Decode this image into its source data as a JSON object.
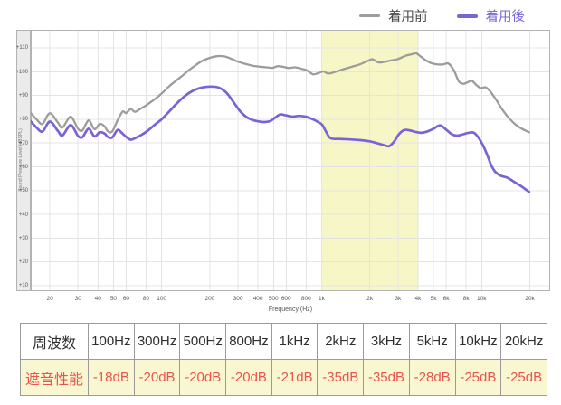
{
  "legend": {
    "before": {
      "label": "着用前",
      "color": "#9c9c9c",
      "text_color": "#4a4a4a"
    },
    "after": {
      "label": "着用後",
      "color": "#7b63d6",
      "text_color": "#7b63d6"
    }
  },
  "chart_data": {
    "type": "line",
    "x_axis": {
      "title": "Frequency (Hz)",
      "scale": "log",
      "min": 15.2,
      "max": 26800,
      "ticks": [
        20,
        30,
        40,
        50,
        60,
        80,
        100,
        200,
        300,
        400,
        500,
        600,
        800,
        1000,
        2000,
        3000,
        4000,
        5000,
        6000,
        8000,
        10000,
        20000
      ],
      "tick_labels": [
        "20",
        "30",
        "40",
        "50",
        "60",
        "80",
        "100",
        "200",
        "300",
        "400",
        "500",
        "600",
        "800",
        "1k",
        "2k",
        "3k",
        "4k",
        "5k",
        "6k",
        "8k",
        "10k",
        "20k"
      ]
    },
    "y_axis": {
      "title": "Sound Pressure Level (dBSPL)",
      "min": 7.7,
      "max": 117.6,
      "ticks": [
        10,
        20,
        30,
        40,
        50,
        60,
        70,
        80,
        90,
        100,
        110
      ],
      "tick_labels": [
        "+10",
        "+20",
        "+30",
        "+40",
        "+50",
        "+60",
        "+70",
        "+80",
        "+90",
        "+100",
        "+110"
      ]
    },
    "highlight_band": {
      "from": 1000,
      "to": 4000,
      "color": "#f7f6c6"
    },
    "grid_color": "#e4e4e4",
    "border_color": "#b3b3b3",
    "series": [
      {
        "name": "着用前",
        "color": "#9c9c9c",
        "width": 2.3,
        "points": [
          [
            15,
            83
          ],
          [
            16.5,
            80
          ],
          [
            18,
            78
          ],
          [
            20,
            82.5
          ],
          [
            22.5,
            78.5
          ],
          [
            24,
            76.5
          ],
          [
            27,
            81
          ],
          [
            30,
            76
          ],
          [
            32,
            75.3
          ],
          [
            35,
            79.5
          ],
          [
            38,
            75.8
          ],
          [
            41,
            78
          ],
          [
            44,
            77
          ],
          [
            46,
            75
          ],
          [
            49,
            74.8
          ],
          [
            53,
            79.5
          ],
          [
            57,
            83.2
          ],
          [
            60,
            82.6
          ],
          [
            64,
            84.3
          ],
          [
            68,
            83.1
          ],
          [
            73,
            84.2
          ],
          [
            80,
            85.8
          ],
          [
            88,
            87.8
          ],
          [
            95,
            89.5
          ],
          [
            103,
            91.6
          ],
          [
            112,
            94
          ],
          [
            122,
            96
          ],
          [
            133,
            98
          ],
          [
            146,
            100.3
          ],
          [
            160,
            102.3
          ],
          [
            178,
            104.4
          ],
          [
            200,
            105.8
          ],
          [
            222,
            106.5
          ],
          [
            248,
            106.4
          ],
          [
            272,
            105.4
          ],
          [
            300,
            104.2
          ],
          [
            332,
            103.3
          ],
          [
            370,
            102.5
          ],
          [
            412,
            102.1
          ],
          [
            455,
            101.8
          ],
          [
            492,
            101.6
          ],
          [
            532,
            102.3
          ],
          [
            578,
            102
          ],
          [
            625,
            101.5
          ],
          [
            682,
            101.8
          ],
          [
            748,
            101.2
          ],
          [
            812,
            100.5
          ],
          [
            882,
            98.9
          ],
          [
            955,
            99.4
          ],
          [
            1025,
            100.1
          ],
          [
            1100,
            99.2
          ],
          [
            1200,
            99.8
          ],
          [
            1350,
            100.9
          ],
          [
            1550,
            102.1
          ],
          [
            1750,
            103.2
          ],
          [
            1950,
            104.6
          ],
          [
            2080,
            105.2
          ],
          [
            2260,
            103.9
          ],
          [
            2460,
            104.1
          ],
          [
            2700,
            104.7
          ],
          [
            3000,
            105.3
          ],
          [
            3350,
            106.7
          ],
          [
            3650,
            107.3
          ],
          [
            3900,
            107.7
          ],
          [
            4150,
            106.4
          ],
          [
            4450,
            104.9
          ],
          [
            4800,
            103.7
          ],
          [
            5200,
            103.1
          ],
          [
            5700,
            103
          ],
          [
            6200,
            103.4
          ],
          [
            6700,
            100.6
          ],
          [
            7200,
            95.9
          ],
          [
            7700,
            94.9
          ],
          [
            8200,
            95.6
          ],
          [
            8700,
            96.1
          ],
          [
            9300,
            94.3
          ],
          [
            9900,
            93.1
          ],
          [
            10600,
            93.4
          ],
          [
            11300,
            91.7
          ],
          [
            12200,
            88.6
          ],
          [
            13300,
            84.6
          ],
          [
            14500,
            81.2
          ],
          [
            16000,
            78.2
          ],
          [
            17500,
            76.3
          ],
          [
            19000,
            75.1
          ],
          [
            19800,
            74.5
          ]
        ]
      },
      {
        "name": "着用後",
        "color": "#7b63d6",
        "width": 2.7,
        "points": [
          [
            15,
            79.5
          ],
          [
            16.5,
            76.5
          ],
          [
            18,
            74.8
          ],
          [
            20,
            79
          ],
          [
            22.5,
            75
          ],
          [
            24,
            73.2
          ],
          [
            27,
            77.5
          ],
          [
            30,
            73
          ],
          [
            32,
            72.5
          ],
          [
            35,
            76
          ],
          [
            38,
            72.8
          ],
          [
            41,
            74.5
          ],
          [
            44,
            74
          ],
          [
            46,
            72.6
          ],
          [
            49,
            72.3
          ],
          [
            53,
            75.5
          ],
          [
            56,
            74.4
          ],
          [
            60,
            72.6
          ],
          [
            64,
            71.4
          ],
          [
            69,
            72.2
          ],
          [
            75,
            73.5
          ],
          [
            82,
            75.2
          ],
          [
            90,
            77.5
          ],
          [
            100,
            80
          ],
          [
            112,
            83.4
          ],
          [
            125,
            86.8
          ],
          [
            140,
            89.8
          ],
          [
            158,
            92.1
          ],
          [
            178,
            93.3
          ],
          [
            200,
            93.7
          ],
          [
            225,
            93.4
          ],
          [
            250,
            91.6
          ],
          [
            272,
            88.6
          ],
          [
            292,
            85.6
          ],
          [
            312,
            83.1
          ],
          [
            336,
            81.1
          ],
          [
            365,
            79.8
          ],
          [
            400,
            79.1
          ],
          [
            440,
            78.8
          ],
          [
            480,
            79.3
          ],
          [
            515,
            80.8
          ],
          [
            552,
            82
          ],
          [
            600,
            81.6
          ],
          [
            660,
            81.1
          ],
          [
            722,
            81.4
          ],
          [
            790,
            81.1
          ],
          [
            860,
            80.3
          ],
          [
            940,
            79
          ],
          [
            1010,
            77.6
          ],
          [
            1070,
            74.5
          ],
          [
            1140,
            72
          ],
          [
            1300,
            71.7
          ],
          [
            1500,
            71.5
          ],
          [
            1750,
            71.2
          ],
          [
            2000,
            70.7
          ],
          [
            2250,
            69.8
          ],
          [
            2480,
            69
          ],
          [
            2650,
            68.7
          ],
          [
            2850,
            70.8
          ],
          [
            3050,
            73.8
          ],
          [
            3300,
            75.5
          ],
          [
            3600,
            75.2
          ],
          [
            3900,
            74.6
          ],
          [
            4200,
            74.3
          ],
          [
            4600,
            74.9
          ],
          [
            5000,
            76
          ],
          [
            5500,
            77.4
          ],
          [
            6000,
            75.6
          ],
          [
            6500,
            73.7
          ],
          [
            7000,
            73.1
          ],
          [
            7500,
            73.5
          ],
          [
            8200,
            74.2
          ],
          [
            8900,
            74.4
          ],
          [
            9500,
            72.5
          ],
          [
            10200,
            69
          ],
          [
            10900,
            64.5
          ],
          [
            11500,
            60.5
          ],
          [
            12200,
            57.8
          ],
          [
            13200,
            56.2
          ],
          [
            14500,
            55.4
          ],
          [
            16000,
            53.6
          ],
          [
            17500,
            52
          ],
          [
            19000,
            50.3
          ],
          [
            19800,
            49.4
          ]
        ]
      }
    ]
  },
  "table": {
    "header_label": "周波数",
    "row_label": "遮音性能",
    "frequencies": [
      "100Hz",
      "300Hz",
      "500Hz",
      "800Hz",
      "1kHz",
      "2kHz",
      "3kHz",
      "5kHz",
      "10kHz",
      "20kHz"
    ],
    "values": [
      "-18dB",
      "-20dB",
      "-20dB",
      "-20dB",
      "-21dB",
      "-35dB",
      "-35dB",
      "-28dB",
      "-25dB",
      "-25dB"
    ],
    "value_color": "#e8544e",
    "row_bg": "#f9f7d2",
    "header_text_color": "#2e2e2e"
  }
}
